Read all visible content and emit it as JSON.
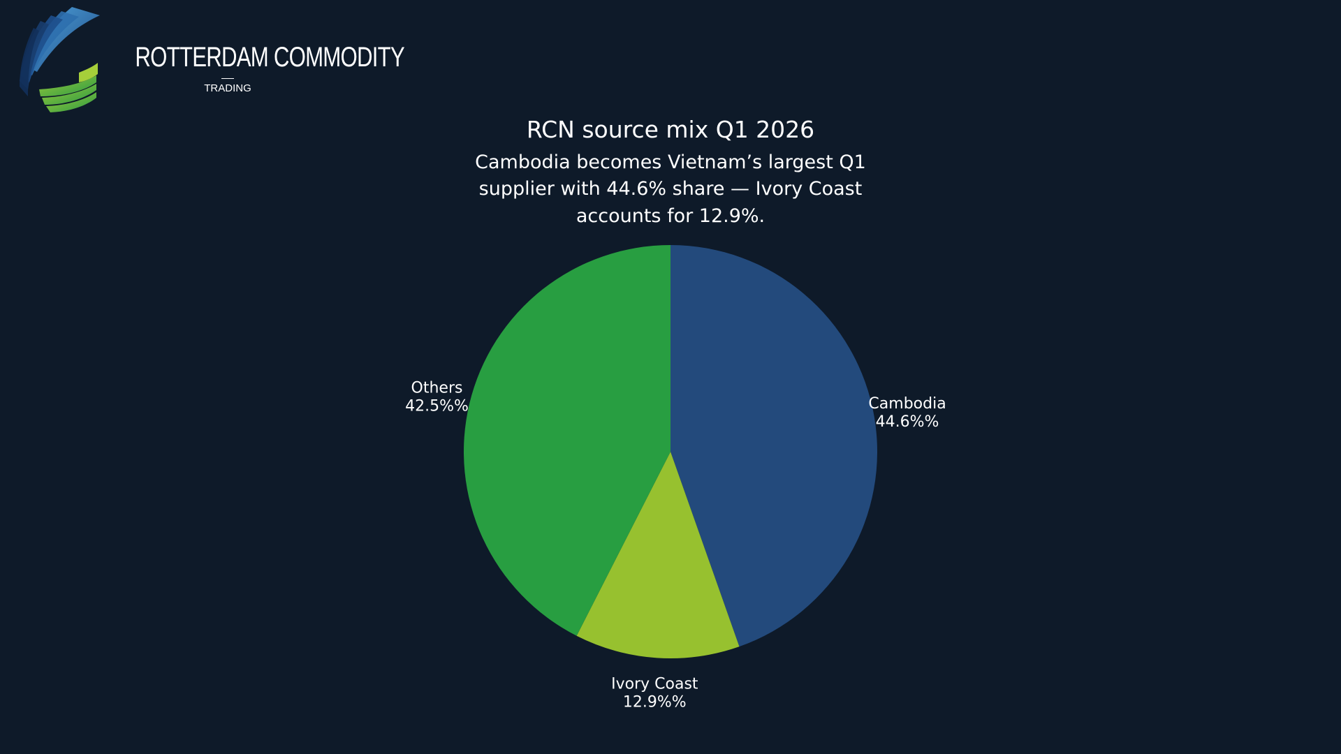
{
  "brand": {
    "name": "ROTTERDAM COMMODITY",
    "sub": "TRADING"
  },
  "chart_data": {
    "type": "pie",
    "title": "RCN source mix Q1 2026",
    "subtitle": "Cambodia becomes Vietnam’s largest Q1 supplier with 44.6% share — Ivory Coast accounts for 12.9%.",
    "slices": [
      {
        "label": "Cambodia",
        "value": 44.6,
        "value_label": "44.6%%",
        "color": "#234a7c"
      },
      {
        "label": "Ivory Coast",
        "value": 12.9,
        "value_label": "12.9%%",
        "color": "#97c12f"
      },
      {
        "label": "Others",
        "value": 42.5,
        "value_label": "42.5%%",
        "color": "#289e41"
      }
    ],
    "start_angle": "12 o'clock",
    "direction": "clockwise",
    "legend": "none"
  },
  "colors": {
    "background": "#0e1a29",
    "text": "#ffffff"
  }
}
